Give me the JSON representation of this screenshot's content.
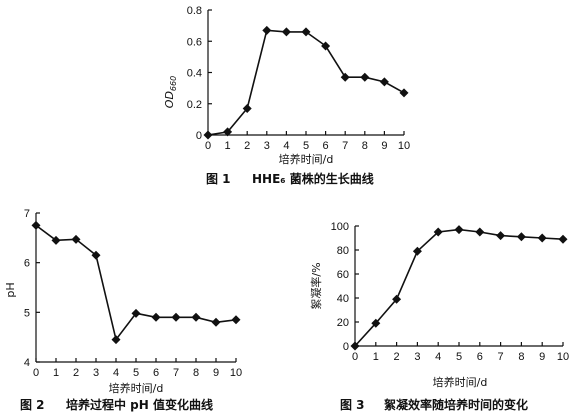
{
  "chart_data": [
    {
      "type": "line",
      "caption_number": "图 1",
      "caption_text": "HHE₆ 菌株的生长曲线",
      "xlabel": "培养时间/d",
      "ylabel_main": "OD",
      "ylabel_sub": "660",
      "xlim": [
        0,
        10
      ],
      "ylim": [
        0,
        0.8
      ],
      "xticks": [
        "0",
        "1",
        "2",
        "3",
        "4",
        "5",
        "6",
        "7",
        "8",
        "9",
        "10"
      ],
      "yticks": [
        "0",
        "0.2",
        "0.4",
        "0.6",
        "0.8"
      ],
      "x": [
        0,
        1,
        2,
        3,
        4,
        5,
        6,
        7,
        8,
        9,
        10
      ],
      "values": [
        0.0,
        0.02,
        0.17,
        0.67,
        0.66,
        0.66,
        0.57,
        0.37,
        0.37,
        0.34,
        0.27
      ],
      "marker": "diamond",
      "grid": false
    },
    {
      "type": "line",
      "caption_number": "图 2",
      "caption_text": "培养过程中 pH 值变化曲线",
      "xlabel": "培养时间/d",
      "ylabel": "pH",
      "xlim": [
        0,
        10
      ],
      "ylim": [
        4,
        7
      ],
      "xticks": [
        "0",
        "1",
        "2",
        "3",
        "4",
        "5",
        "6",
        "7",
        "8",
        "9",
        "10"
      ],
      "yticks": [
        "4",
        "5",
        "6",
        "7"
      ],
      "x": [
        0,
        1,
        2,
        3,
        4,
        5,
        6,
        7,
        8,
        9,
        10
      ],
      "values": [
        6.75,
        6.45,
        6.47,
        6.15,
        4.45,
        4.98,
        4.9,
        4.9,
        4.9,
        4.8,
        4.85
      ],
      "marker": "diamond",
      "grid": false
    },
    {
      "type": "line",
      "caption_number": "图 3",
      "caption_text": "絮凝效率随培养时间的变化",
      "xlabel": "培养时间/d",
      "ylabel": "絮凝率/%",
      "xlim": [
        0,
        10
      ],
      "ylim": [
        0,
        100
      ],
      "xticks": [
        "0",
        "1",
        "2",
        "3",
        "4",
        "5",
        "6",
        "7",
        "8",
        "9",
        "10"
      ],
      "yticks": [
        "0",
        "20",
        "40",
        "60",
        "80",
        "100"
      ],
      "x": [
        0,
        1,
        2,
        3,
        4,
        5,
        6,
        7,
        8,
        9,
        10
      ],
      "values": [
        0,
        19,
        39,
        79,
        95,
        97,
        95,
        92,
        91,
        90,
        89
      ],
      "marker": "diamond",
      "grid": false
    }
  ]
}
